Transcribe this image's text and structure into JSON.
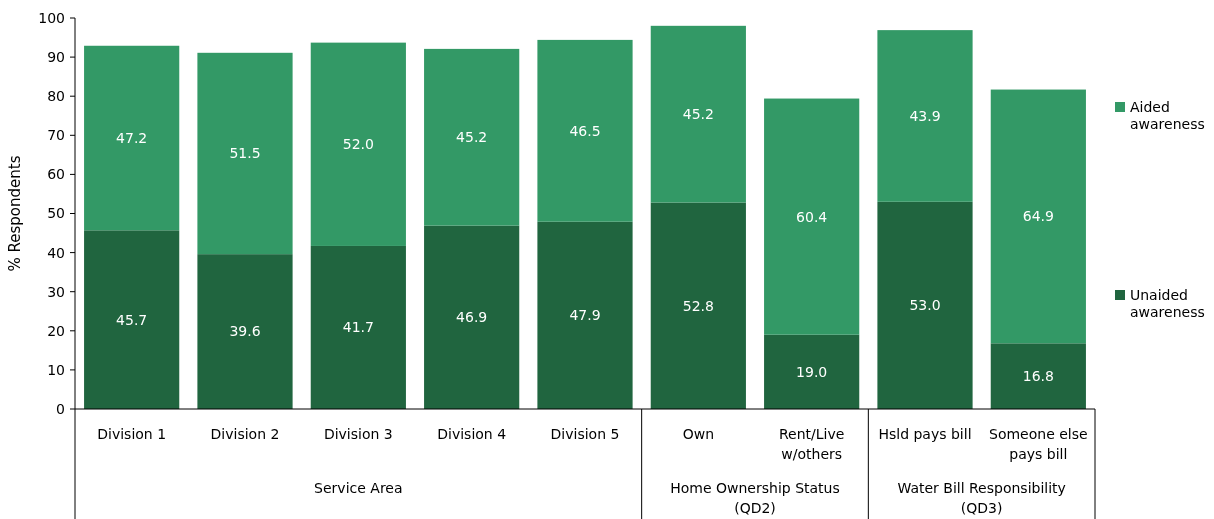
{
  "chart_data": {
    "type": "bar",
    "stacked": true,
    "ylabel": "% Respondents",
    "categories": [
      "Division 1",
      "Division 2",
      "Division 3",
      "Division 4",
      "Division 5",
      "Own",
      "Rent/Live w/others",
      "Hsld pays bill",
      "Someone else pays bill"
    ],
    "series": [
      {
        "name": "Unaided awareness",
        "color": "#20653f",
        "values": [
          45.7,
          39.6,
          41.7,
          46.9,
          47.9,
          52.8,
          19.0,
          53.0,
          16.8
        ],
        "value_labels": [
          "45.7",
          "39.6",
          "41.7",
          "46.9",
          "47.9",
          "52.8",
          "19.0",
          "53.0",
          "16.8"
        ]
      },
      {
        "name": "Aided awareness",
        "color": "#339966",
        "values": [
          47.2,
          51.5,
          52.0,
          45.2,
          46.5,
          45.2,
          60.4,
          43.9,
          64.9
        ],
        "value_labels": [
          "47.2",
          "51.5",
          "52.0",
          "45.2",
          "46.5",
          "45.2",
          "60.4",
          "43.9",
          "64.9"
        ]
      }
    ],
    "ylim": [
      0,
      100
    ],
    "yticks": [
      0,
      10,
      20,
      30,
      40,
      50,
      60,
      70,
      80,
      90,
      100
    ],
    "legend": "right",
    "annotations": [
      "Service Area",
      "Home Ownership Status (QD2)",
      "Water Bill Responsibility (QD3)"
    ]
  }
}
